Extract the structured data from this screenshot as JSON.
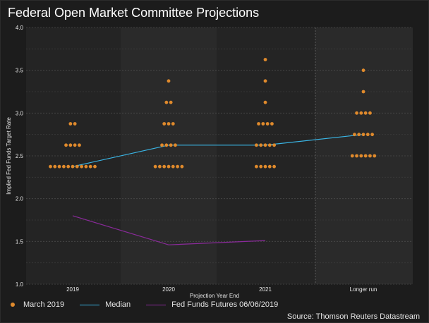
{
  "chart_data": {
    "type": "scatter",
    "title": "Federal Open Market Committee Projections",
    "xlabel": "Projection Year End",
    "ylabel": "Implied Fed Funds Target Rate",
    "categories": [
      "2019",
      "2020",
      "2021",
      "Longer run"
    ],
    "ylim": [
      1.0,
      4.0
    ],
    "yticks": [
      "1.0",
      "1.5",
      "2.0",
      "2.5",
      "3.0",
      "3.5",
      "4.0"
    ],
    "grid": true,
    "legend_position": "bottom-left",
    "series": [
      {
        "name": "March 2019",
        "kind": "dots",
        "color": "#e08a2c",
        "points": [
          {
            "x": "2019",
            "y": 2.375,
            "count": 11
          },
          {
            "x": "2019",
            "y": 2.625,
            "count": 4
          },
          {
            "x": "2019",
            "y": 2.875,
            "count": 2
          },
          {
            "x": "2020",
            "y": 2.375,
            "count": 7
          },
          {
            "x": "2020",
            "y": 2.625,
            "count": 4
          },
          {
            "x": "2020",
            "y": 2.875,
            "count": 3
          },
          {
            "x": "2020",
            "y": 3.125,
            "count": 2
          },
          {
            "x": "2020",
            "y": 3.375,
            "count": 1
          },
          {
            "x": "2021",
            "y": 2.375,
            "count": 5
          },
          {
            "x": "2021",
            "y": 2.625,
            "count": 5
          },
          {
            "x": "2021",
            "y": 2.875,
            "count": 4
          },
          {
            "x": "2021",
            "y": 3.125,
            "count": 1
          },
          {
            "x": "2021",
            "y": 3.375,
            "count": 1
          },
          {
            "x": "2021",
            "y": 3.625,
            "count": 1
          },
          {
            "x": "Longer run",
            "y": 2.5,
            "count": 6
          },
          {
            "x": "Longer run",
            "y": 2.75,
            "count": 5
          },
          {
            "x": "Longer run",
            "y": 3.0,
            "count": 4
          },
          {
            "x": "Longer run",
            "y": 3.25,
            "count": 1
          },
          {
            "x": "Longer run",
            "y": 3.5,
            "count": 1
          }
        ]
      },
      {
        "name": "Median",
        "kind": "line",
        "color": "#3ab6e6",
        "x": [
          "2019",
          "2020",
          "2021",
          "Longer run"
        ],
        "values": [
          2.375,
          2.625,
          2.625,
          2.75
        ]
      },
      {
        "name": "Fed Funds Futures 06/06/2019",
        "kind": "line",
        "color": "#8a2a9a",
        "x": [
          "2019",
          "2020",
          "2021"
        ],
        "values": [
          1.8,
          1.46,
          1.51
        ]
      }
    ]
  },
  "source": "Source: Thomson Reuters Datastream"
}
